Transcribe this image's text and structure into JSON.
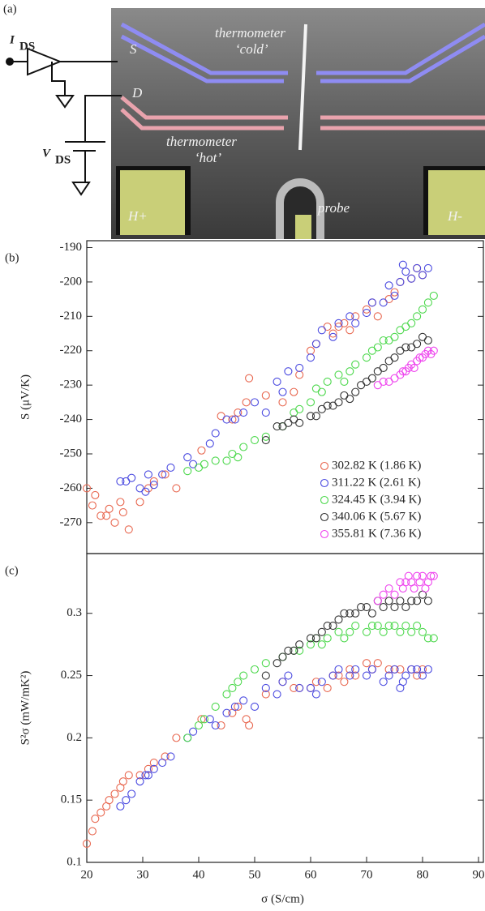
{
  "figure_a": {
    "panel_label": "(a)",
    "current_label": {
      "main": "I",
      "sub": "DS"
    },
    "voltage_label": {
      "main": "V",
      "sub": "DS"
    },
    "source_label": "S",
    "drain_label": "D",
    "cold_label": [
      "thermometer",
      "‘cold’"
    ],
    "hot_label": [
      "thermometer",
      "‘hot’"
    ],
    "probe_label": "probe",
    "heater_plus": "H+",
    "heater_minus": "H-"
  },
  "chart_data": [
    {
      "type": "scatter",
      "panel_label": "(b)",
      "y_label": "S (μV/K)",
      "xlim": [
        20,
        90
      ],
      "ylim": [
        -279,
        -188
      ],
      "yticks": [
        -270,
        -260,
        -250,
        -240,
        -230,
        -220,
        -210,
        -200,
        -190
      ],
      "legend": "lower right",
      "series": [
        {
          "name": "302.82 K (1.86 K)",
          "color": "#e8674f",
          "x": [
            20,
            21,
            21.5,
            22.5,
            23.5,
            24,
            25,
            26,
            26.5,
            27.5,
            29.5,
            31,
            32,
            34,
            36,
            40.5,
            44,
            46,
            47,
            48.5,
            49,
            52,
            55,
            57,
            58,
            60,
            61,
            63,
            64,
            65,
            66,
            67,
            68,
            70,
            71,
            72,
            74,
            75,
            76,
            78,
            79,
            80
          ],
          "values": [
            -260,
            -265,
            -262,
            -268,
            -268,
            -266,
            -270,
            -264,
            -267,
            -272,
            -264,
            -260,
            -258,
            -256,
            -260,
            -249,
            -239,
            -240,
            -238,
            -235,
            -228,
            -233,
            -235,
            -232,
            -227,
            -220,
            -218,
            -213,
            -215,
            -213,
            -212,
            -214,
            -210,
            -208,
            -206,
            -210,
            -205,
            -203,
            -200,
            -199,
            -196,
            -198
          ]
        },
        {
          "name": "311.22 K (2.61 K)",
          "color": "#4a4ae0",
          "x": [
            26,
            27,
            28,
            29.5,
            30.5,
            31,
            32,
            33.5,
            35,
            38,
            39,
            42,
            43,
            45,
            46.5,
            48,
            50,
            52,
            54,
            55,
            56,
            58,
            60,
            61,
            62,
            64,
            65,
            67,
            68,
            70,
            71,
            73,
            74,
            75,
            76,
            76.5,
            77,
            78,
            79,
            80,
            81
          ],
          "values": [
            -258,
            -258,
            -257,
            -260,
            -261,
            -256,
            -259,
            -256,
            -254,
            -251,
            -253,
            -247,
            -244,
            -240,
            -240,
            -238,
            -235,
            -238,
            -229,
            -232,
            -226,
            -225,
            -222,
            -218,
            -214,
            -216,
            -212,
            -210,
            -212,
            -209,
            -206,
            -206,
            -201,
            -204,
            -200,
            -195,
            -197,
            -199,
            -196,
            -198,
            -196
          ]
        },
        {
          "name": "324.45 K (3.94 K)",
          "color": "#4cd84c",
          "x": [
            38,
            40,
            41,
            43,
            45,
            46,
            47,
            48,
            50,
            52,
            55,
            57,
            58,
            60,
            61,
            62,
            63,
            65,
            66,
            67,
            68,
            70,
            71,
            72,
            73,
            74,
            75,
            76,
            77,
            78,
            79,
            80,
            81,
            82
          ],
          "values": [
            -255,
            -254,
            -253,
            -252,
            -252,
            -250,
            -251,
            -248,
            -246,
            -245,
            -242,
            -238,
            -237,
            -235,
            -231,
            -232,
            -229,
            -227,
            -229,
            -226,
            -224,
            -222,
            -220,
            -219,
            -217,
            -217,
            -216,
            -214,
            -213,
            -212,
            -210,
            -208,
            -206,
            -204
          ]
        },
        {
          "name": "340.06 K (5.67 K)",
          "color": "#333333",
          "x": [
            52,
            54,
            55,
            56,
            57,
            58,
            60,
            61,
            62,
            63,
            64,
            65,
            66,
            67,
            68,
            69,
            70,
            71,
            72,
            73,
            74,
            75,
            76,
            77,
            78,
            79,
            80,
            81
          ],
          "values": [
            -246,
            -242,
            -242,
            -241,
            -240,
            -241,
            -239,
            -239,
            -237,
            -236,
            -236,
            -235,
            -233,
            -234,
            -232,
            -230,
            -229,
            -228,
            -226,
            -225,
            -223,
            -222,
            -220,
            -219,
            -219,
            -218,
            -216,
            -217
          ]
        },
        {
          "name": "355.81 K (7.36 K)",
          "color": "#ee44ee",
          "x": [
            72,
            73,
            74,
            75,
            76,
            76.5,
            77,
            77.5,
            78,
            78.5,
            79,
            79.5,
            80,
            80.5,
            81,
            81.5,
            82
          ],
          "values": [
            -230,
            -229,
            -229,
            -228,
            -227,
            -226,
            -226,
            -225,
            -224,
            -225,
            -223,
            -222,
            -222,
            -221,
            -220,
            -221,
            -220
          ]
        }
      ]
    },
    {
      "type": "scatter",
      "panel_label": "(c)",
      "y_label": "S²σ (mW/mK²)",
      "x_label": "σ (S/cm)",
      "xlim": [
        20,
        90
      ],
      "ylim": [
        0.1,
        0.348
      ],
      "xticks": [
        20,
        30,
        40,
        50,
        60,
        70,
        80,
        90
      ],
      "yticks": [
        0.1,
        0.15,
        0.2,
        0.25,
        0.3
      ],
      "series": [
        {
          "color": "#e8674f",
          "x": [
            20,
            21,
            21.5,
            22.5,
            23.5,
            24,
            25,
            26,
            26.5,
            27.5,
            29.5,
            31,
            32,
            34,
            36,
            40.5,
            44,
            46,
            47,
            48.5,
            49,
            52,
            55,
            57,
            58,
            60,
            61,
            63,
            64,
            65,
            66,
            67,
            68,
            70,
            71,
            72,
            74,
            75,
            76,
            78,
            79,
            80
          ],
          "values": [
            0.115,
            0.125,
            0.135,
            0.14,
            0.145,
            0.15,
            0.155,
            0.16,
            0.165,
            0.17,
            0.17,
            0.175,
            0.18,
            0.185,
            0.2,
            0.215,
            0.21,
            0.22,
            0.225,
            0.215,
            0.21,
            0.235,
            0.245,
            0.24,
            0.24,
            0.24,
            0.245,
            0.24,
            0.25,
            0.25,
            0.245,
            0.255,
            0.25,
            0.26,
            0.255,
            0.26,
            0.255,
            0.255,
            0.255,
            0.255,
            0.25,
            0.255
          ]
        },
        {
          "color": "#4a4ae0",
          "x": [
            26,
            27,
            28,
            29.5,
            30.5,
            31,
            32,
            33.5,
            35,
            38,
            39,
            42,
            43,
            45,
            46.5,
            48,
            50,
            52,
            54,
            55,
            56,
            58,
            60,
            61,
            62,
            64,
            65,
            67,
            68,
            70,
            71,
            73,
            74,
            75,
            76,
            76.5,
            77,
            78,
            79,
            80,
            81
          ],
          "values": [
            0.145,
            0.15,
            0.155,
            0.165,
            0.17,
            0.17,
            0.175,
            0.18,
            0.185,
            0.2,
            0.205,
            0.215,
            0.21,
            0.22,
            0.225,
            0.23,
            0.225,
            0.24,
            0.235,
            0.245,
            0.25,
            0.24,
            0.24,
            0.235,
            0.245,
            0.25,
            0.255,
            0.25,
            0.255,
            0.25,
            0.255,
            0.245,
            0.25,
            0.255,
            0.24,
            0.245,
            0.25,
            0.255,
            0.255,
            0.25,
            0.255
          ]
        },
        {
          "color": "#4cd84c",
          "x": [
            38,
            40,
            41,
            43,
            45,
            46,
            47,
            48,
            50,
            52,
            55,
            57,
            58,
            60,
            61,
            62,
            63,
            65,
            66,
            67,
            68,
            70,
            71,
            72,
            73,
            74,
            75,
            76,
            77,
            78,
            79,
            80,
            81,
            82
          ],
          "values": [
            0.2,
            0.21,
            0.215,
            0.225,
            0.235,
            0.24,
            0.245,
            0.25,
            0.255,
            0.26,
            0.265,
            0.27,
            0.27,
            0.275,
            0.28,
            0.275,
            0.28,
            0.285,
            0.28,
            0.285,
            0.29,
            0.285,
            0.29,
            0.29,
            0.285,
            0.29,
            0.29,
            0.285,
            0.29,
            0.285,
            0.29,
            0.285,
            0.28,
            0.28
          ]
        },
        {
          "color": "#333333",
          "x": [
            52,
            54,
            55,
            56,
            57,
            58,
            60,
            61,
            62,
            63,
            64,
            65,
            66,
            67,
            68,
            69,
            70,
            71,
            72,
            73,
            74,
            75,
            76,
            77,
            78,
            79,
            80,
            81
          ],
          "values": [
            0.25,
            0.26,
            0.265,
            0.27,
            0.27,
            0.275,
            0.28,
            0.28,
            0.285,
            0.29,
            0.29,
            0.295,
            0.3,
            0.3,
            0.3,
            0.305,
            0.305,
            0.3,
            0.31,
            0.305,
            0.31,
            0.305,
            0.31,
            0.305,
            0.31,
            0.31,
            0.315,
            0.31
          ]
        },
        {
          "color": "#ee44ee",
          "x": [
            72,
            73,
            74,
            75,
            76,
            76.5,
            77,
            77.5,
            78,
            78.5,
            79,
            79.5,
            80,
            80.5,
            81,
            81.5,
            82
          ],
          "values": [
            0.31,
            0.315,
            0.32,
            0.315,
            0.325,
            0.32,
            0.325,
            0.33,
            0.325,
            0.32,
            0.33,
            0.325,
            0.33,
            0.32,
            0.325,
            0.33,
            0.33
          ]
        }
      ]
    }
  ]
}
